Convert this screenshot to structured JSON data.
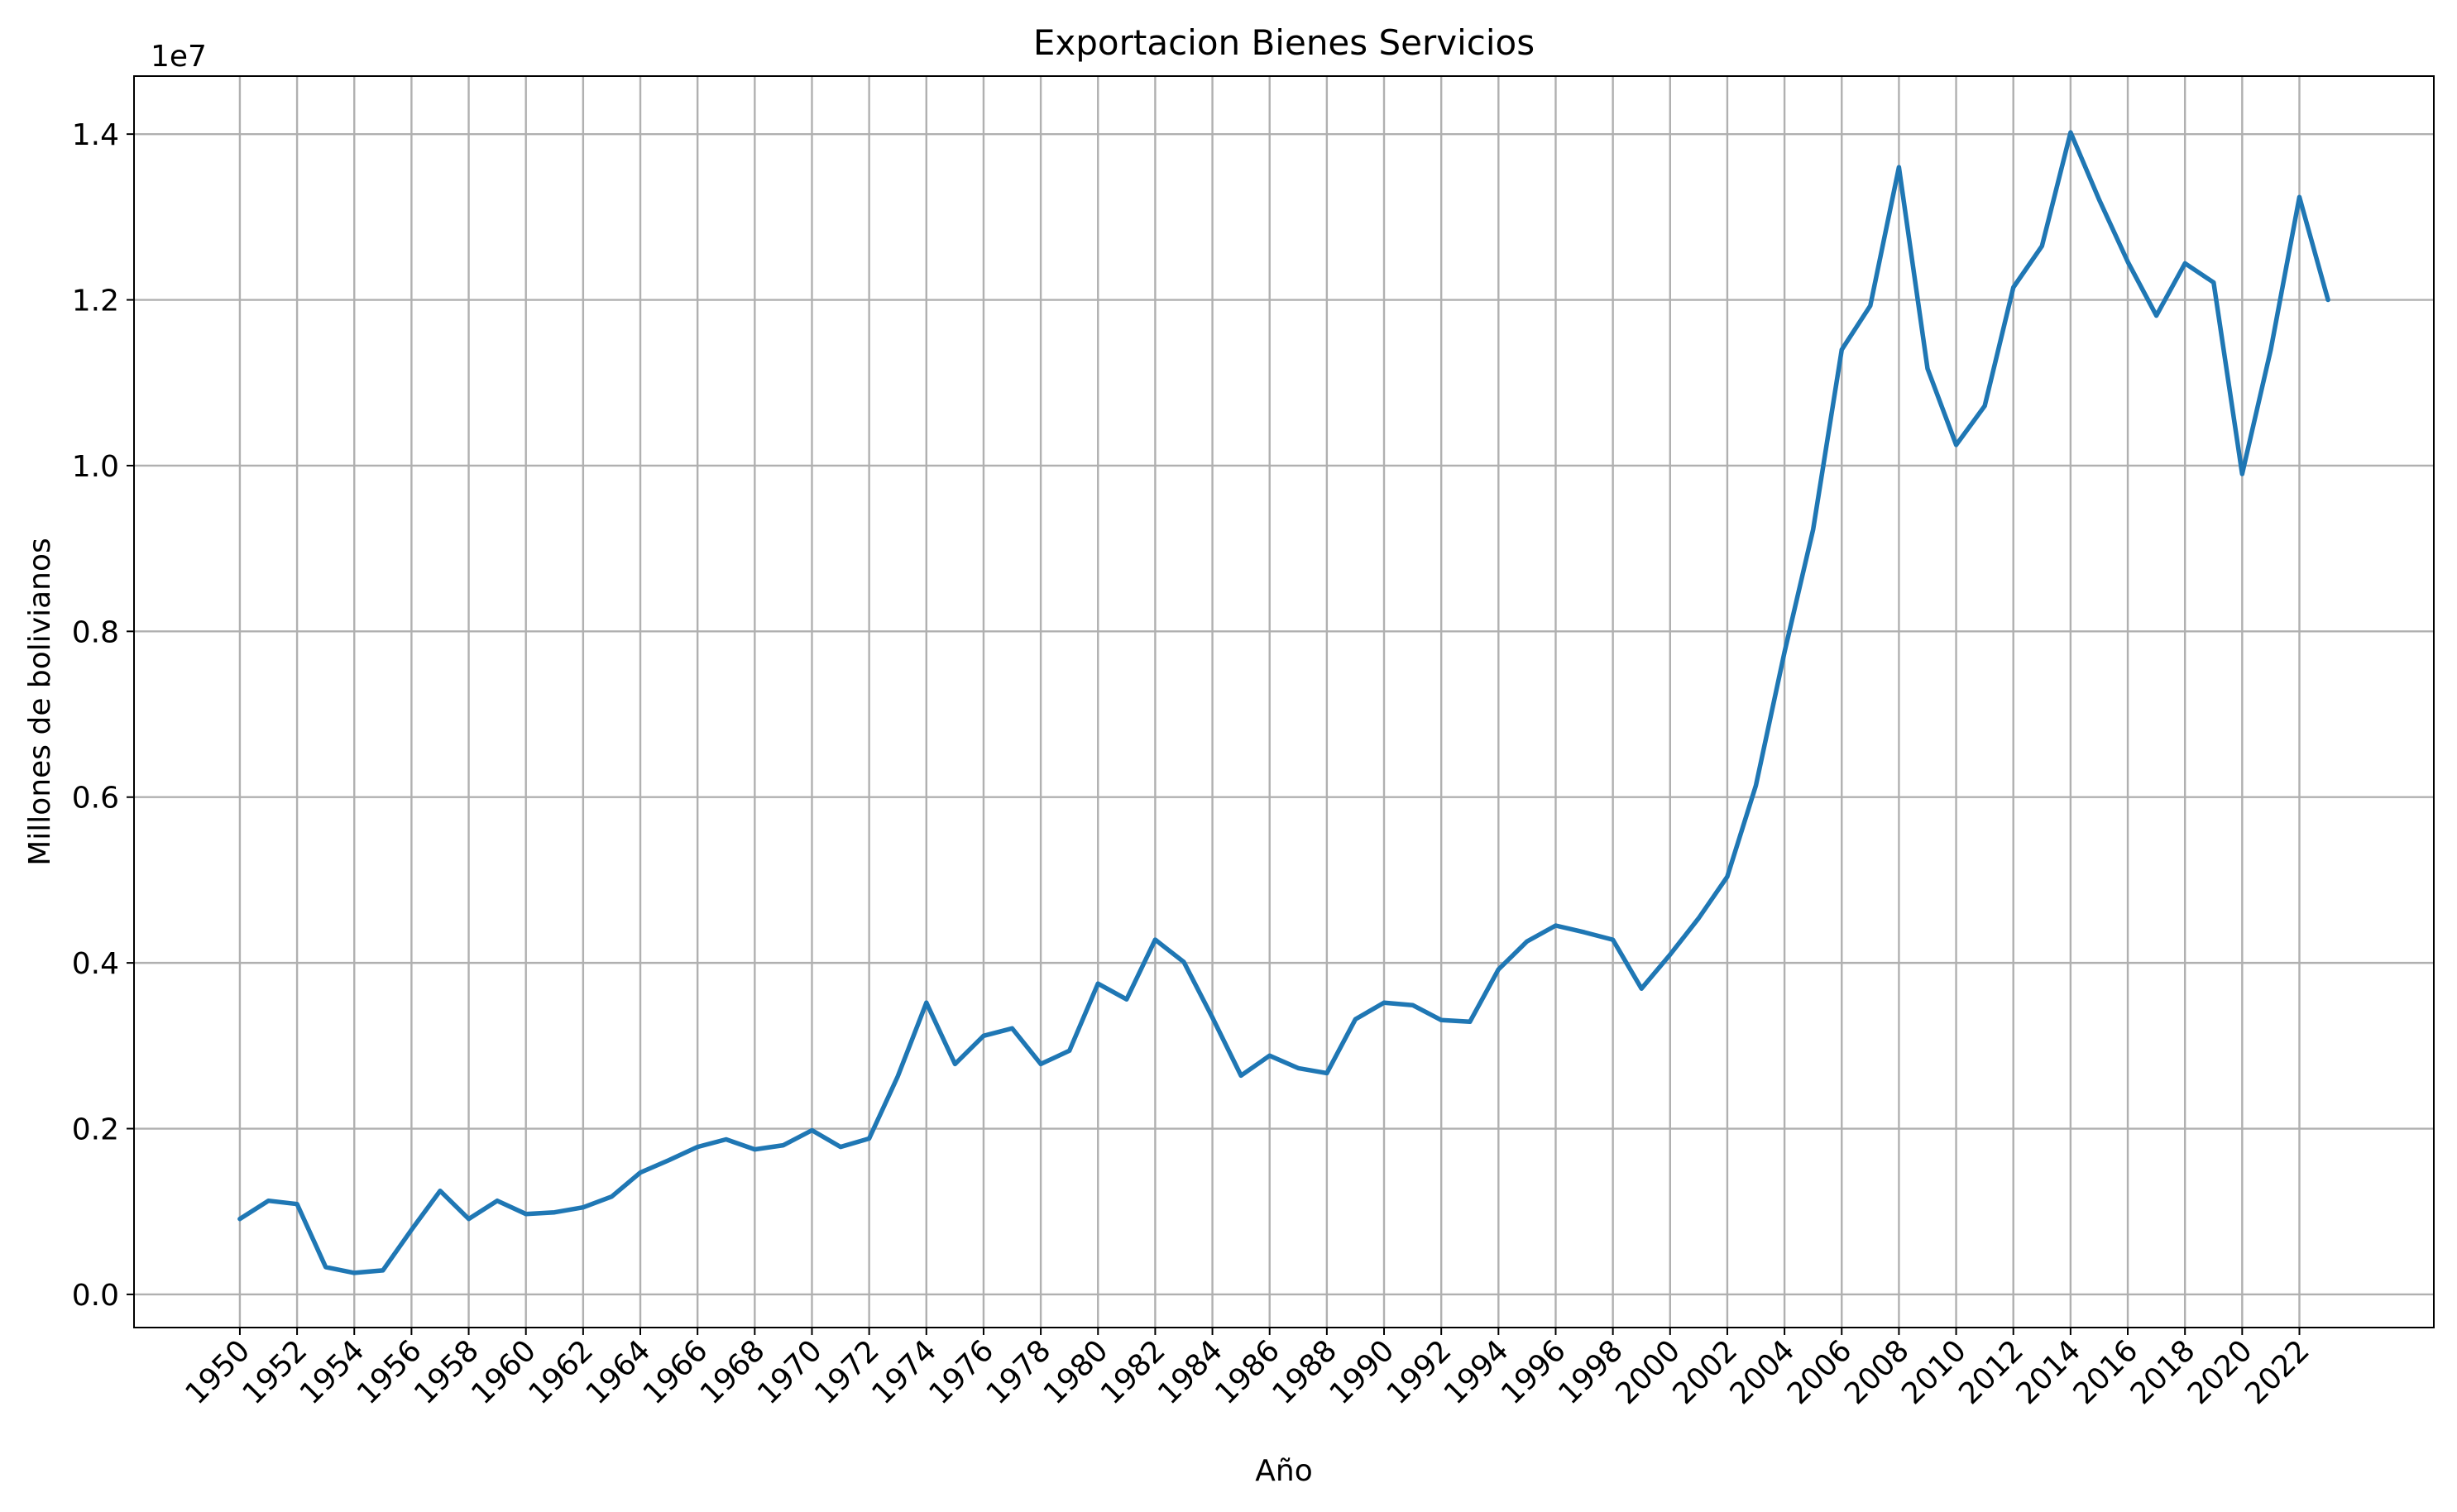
{
  "chart_data": {
    "type": "line",
    "title": "Exportacion Bienes Servicios",
    "xlabel": "Año",
    "ylabel": "Millones de bolivianos",
    "y_offset_label": "1e7",
    "y_scale_factor": 10000000,
    "grid": true,
    "xlim": [
      1946.3,
      2026.7
    ],
    "ylim": [
      -0.04,
      1.47
    ],
    "x_ticks": [
      1950,
      1952,
      1954,
      1956,
      1958,
      1960,
      1962,
      1964,
      1966,
      1968,
      1970,
      1972,
      1974,
      1976,
      1978,
      1980,
      1982,
      1984,
      1986,
      1988,
      1990,
      1992,
      1994,
      1996,
      1998,
      2000,
      2002,
      2004,
      2006,
      2008,
      2010,
      2012,
      2014,
      2016,
      2018,
      2020,
      2022
    ],
    "y_ticks": [
      0.0,
      0.2,
      0.4,
      0.6,
      0.8,
      1.0,
      1.2,
      1.4
    ],
    "y_tick_labels": [
      "0.0",
      "0.2",
      "0.4",
      "0.6",
      "0.8",
      "1.0",
      "1.2",
      "1.4"
    ],
    "colors": {
      "series": "#1f77b4",
      "grid": "#b0b0b0"
    },
    "series": [
      {
        "x": [
          1950,
          1951,
          1952,
          1953,
          1954,
          1955,
          1956,
          1957,
          1958,
          1959,
          1960,
          1961,
          1962,
          1963,
          1964,
          1965,
          1966,
          1967,
          1968,
          1969,
          1970,
          1971,
          1972,
          1973,
          1974,
          1975,
          1976,
          1977,
          1978,
          1979,
          1980,
          1981,
          1982,
          1983,
          1984,
          1985,
          1986,
          1987,
          1988,
          1989,
          1990,
          1991,
          1992,
          1993,
          1994,
          1995,
          1996,
          1997,
          1998,
          1999,
          2000,
          2001,
          2002,
          2003,
          2004,
          2005,
          2006,
          2007,
          2008,
          2009,
          2010,
          2011,
          2012,
          2013,
          2014,
          2015,
          2016,
          2017,
          2018,
          2019,
          2020,
          2021,
          2022,
          2023
        ],
        "values": [
          0.091,
          0.113,
          0.109,
          0.033,
          0.026,
          0.029,
          0.078,
          0.125,
          0.091,
          0.113,
          0.097,
          0.099,
          0.105,
          0.118,
          0.147,
          0.162,
          0.178,
          0.187,
          0.175,
          0.18,
          0.198,
          0.178,
          0.188,
          0.263,
          0.352,
          0.278,
          0.312,
          0.321,
          0.278,
          0.294,
          0.375,
          0.356,
          0.428,
          0.401,
          0.334,
          0.264,
          0.288,
          0.273,
          0.267,
          0.332,
          0.352,
          0.349,
          0.331,
          0.329,
          0.392,
          0.426,
          0.445,
          0.437,
          0.428,
          0.369,
          0.41,
          0.454,
          0.504,
          0.614,
          0.775,
          0.923,
          1.14,
          1.193,
          1.36,
          1.117,
          1.025,
          1.072,
          1.215,
          1.265,
          1.402,
          1.321,
          1.246,
          1.181,
          1.244,
          1.221,
          0.99,
          1.14,
          1.324,
          1.2
        ]
      }
    ]
  }
}
